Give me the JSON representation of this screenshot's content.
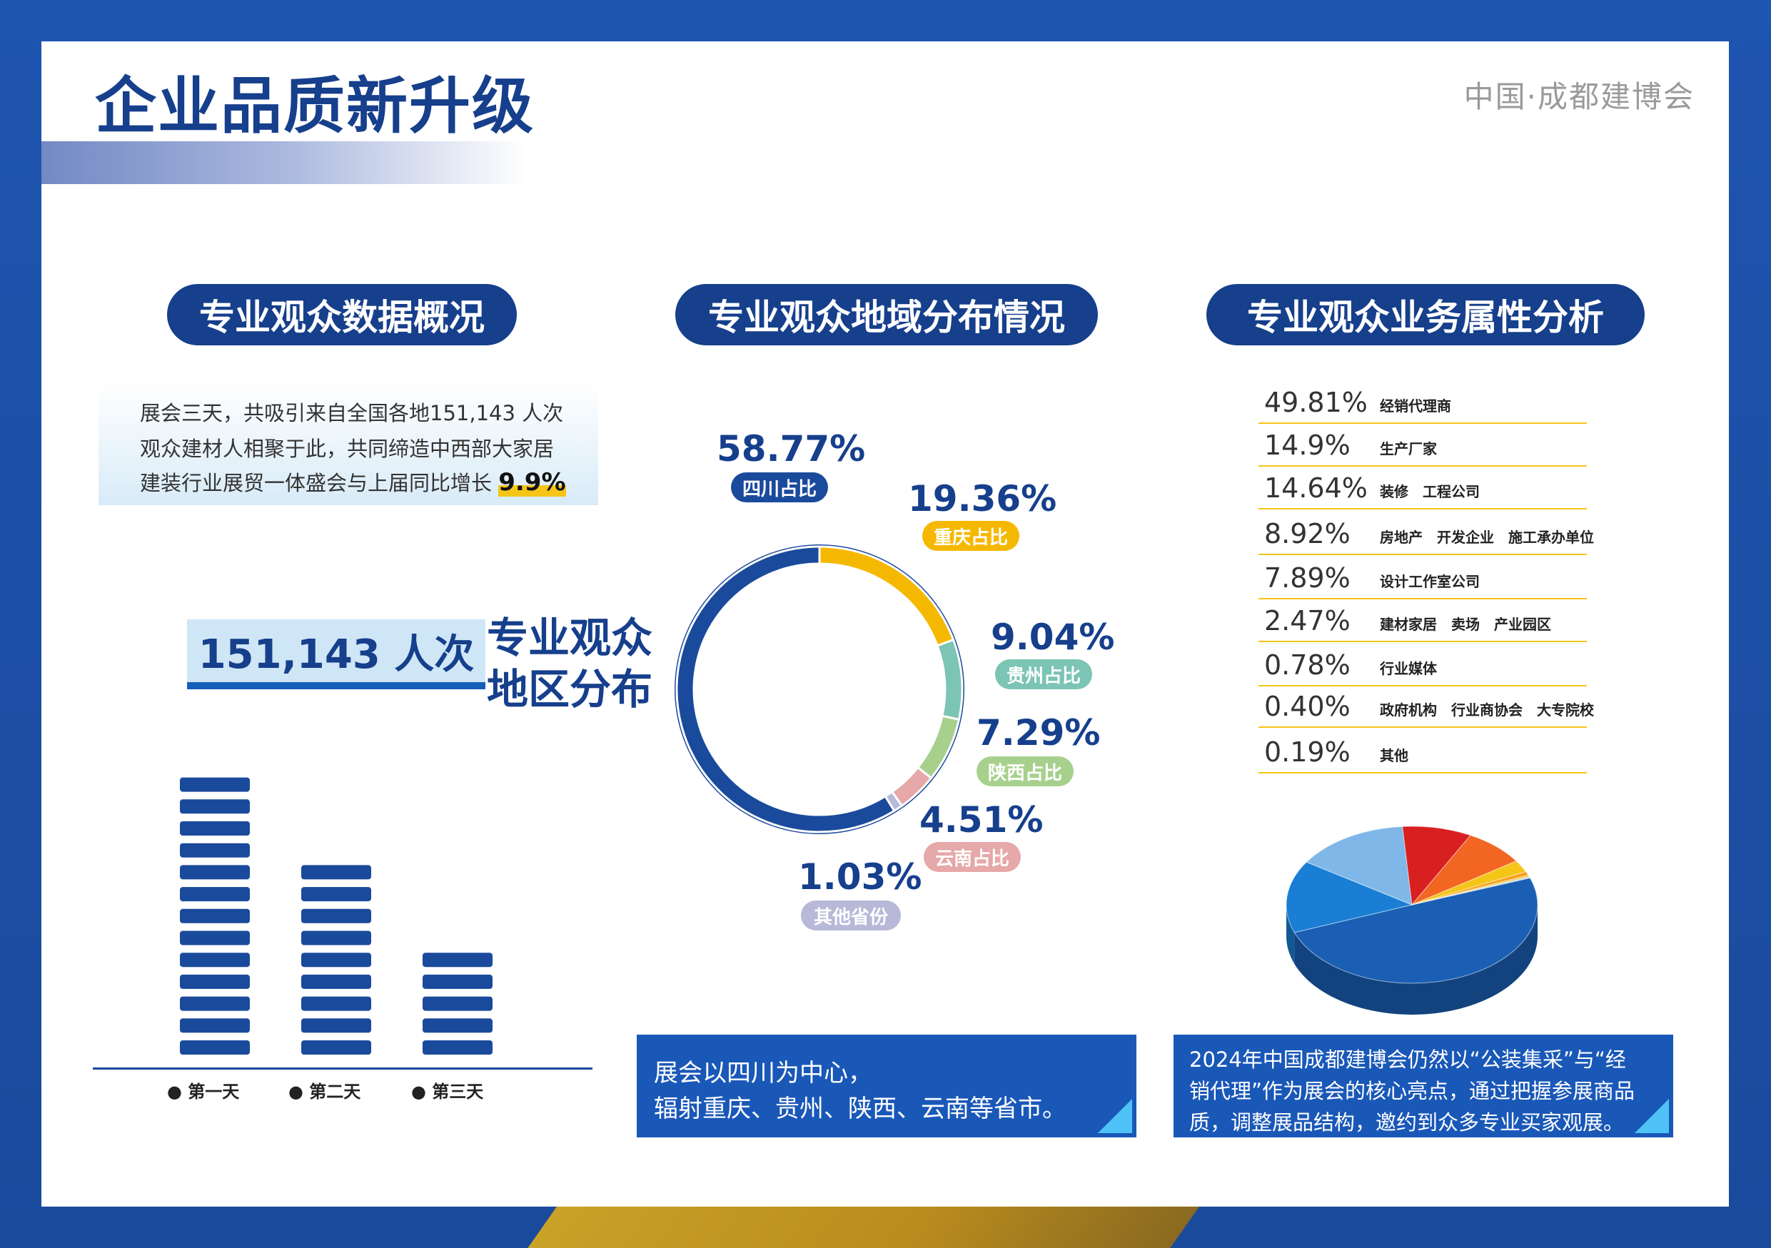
{
  "header": {
    "title": "企业品质新升级",
    "brand": "中国·成都建博会"
  },
  "colors": {
    "frame": "#1a4a9c",
    "navy": "#163f8c",
    "accent_yellow": "#f5c518",
    "sichuan": "#1a4a9c",
    "chongqing": "#f5b800",
    "guizhou": "#7cc4b4",
    "shaanxi": "#a8d08d",
    "yunnan": "#e6a8a8",
    "others": "#b8b8d8"
  },
  "section1": {
    "heading": "专业观众数据概况",
    "intro_lines": [
      "展会三天，共吸引来自全国各地151,143 人次",
      "观众建材人相聚于此，共同缔造中西部大家居",
      "建装行业展贸一体盛会与上届同比增长"
    ],
    "growth": "9.9%",
    "total": "151,143 人次",
    "days": [
      {
        "label": "第一天"
      },
      {
        "label": "第二天"
      },
      {
        "label": "第三天"
      }
    ]
  },
  "section2": {
    "heading": "专业观众地域分布情况",
    "center_lines": [
      "专业观众",
      "地区分布"
    ],
    "regions": [
      {
        "pct": "58.77%",
        "tag": "四川占比",
        "value": 58.77,
        "color": "#1a4a9c"
      },
      {
        "pct": "19.36%",
        "tag": "重庆占比",
        "value": 19.36,
        "color": "#f5b800"
      },
      {
        "pct": "9.04%",
        "tag": "贵州占比",
        "value": 9.04,
        "color": "#7cc4b4"
      },
      {
        "pct": "7.29%",
        "tag": "陕西占比",
        "value": 7.29,
        "color": "#a8d08d"
      },
      {
        "pct": "4.51%",
        "tag": "云南占比",
        "value": 4.51,
        "color": "#e6a8a8"
      },
      {
        "pct": "1.03%",
        "tag": "其他省份",
        "value": 1.03,
        "color": "#b8b8d8"
      }
    ],
    "note_lines": [
      "展会以四川为中心，",
      "辐射重庆、贵州、陕西、云南等省市。"
    ]
  },
  "section3": {
    "heading": "专业观众业务属性分析",
    "items": [
      {
        "pct": "49.81%",
        "name": "经销代理商",
        "value": 49.81,
        "color": "#1a5fb4"
      },
      {
        "pct": "14.9%",
        "name": "生产厂家",
        "value": 14.9,
        "color": "#1a7fd4"
      },
      {
        "pct": "14.64%",
        "name": "装修　工程公司",
        "value": 14.64,
        "color": "#7fb8e8"
      },
      {
        "pct": "8.92%",
        "name": "房地产　开发企业　施工承办单位",
        "value": 8.92,
        "color": "#d92020"
      },
      {
        "pct": "7.89%",
        "name": "设计工作室公司",
        "value": 7.89,
        "color": "#f26522"
      },
      {
        "pct": "2.47%",
        "name": "建材家居　卖场　产业园区",
        "value": 2.47,
        "color": "#f5c518"
      },
      {
        "pct": "0.78%",
        "name": "行业媒体",
        "value": 0.78,
        "color": "#f7a21b"
      },
      {
        "pct": "0.40%",
        "name": "政府机构　行业商协会　大专院校",
        "value": 0.4,
        "color": "#e8d070"
      },
      {
        "pct": "0.19%",
        "name": "其他",
        "value": 0.19,
        "color": "#b0c8e8"
      }
    ],
    "note_lines": [
      "2024年中国成都建博会仍然以“公装集采”与“经",
      "销代理”作为展会的核心亮点，通过把握参展商品",
      "质，调整展品结构，邀约到众多专业买家观展。"
    ]
  }
}
